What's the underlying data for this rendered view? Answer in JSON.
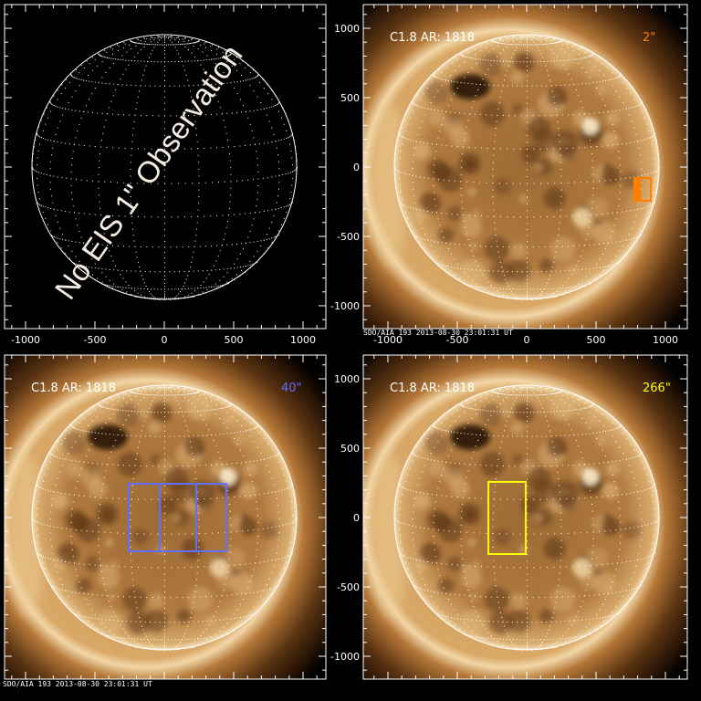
{
  "caption": "SDO/AIA 193  2013-08-30 23:01:31 UT",
  "axes": {
    "units": "arcsec",
    "xlim": [
      -1150,
      1150
    ],
    "ylim": [
      -1170,
      1170
    ],
    "major_ticks": [
      -1000,
      -500,
      0,
      500,
      1000
    ],
    "tick_labels": [
      "-1000",
      "-500",
      "0",
      "500",
      "1000"
    ],
    "minor_step": 100
  },
  "panels": [
    {
      "id": "no-observation",
      "overlay_text": "No EIS 1\" Observation",
      "has_image": false,
      "annotation": "",
      "scale_label": "",
      "color": "#ffffff",
      "boxes": []
    },
    {
      "id": "eis-2",
      "has_image": true,
      "annotation": "C1.8 AR: 1818",
      "scale_label": "2\"",
      "color": "#ff7f00",
      "boxes": [
        {
          "x": [
            776,
            895
          ],
          "y": [
            -243,
            -79
          ],
          "filled_part": true
        }
      ]
    },
    {
      "id": "eis-40",
      "has_image": true,
      "annotation": "C1.8 AR: 1818",
      "scale_label": "40\"",
      "color": "#6070ff",
      "boxes": [
        {
          "x": [
            -257,
            447
          ],
          "y": [
            -243,
            243
          ],
          "dividers": [
            -33,
            230
          ]
        }
      ]
    },
    {
      "id": "eis-266",
      "has_image": true,
      "annotation": "C1.8 AR: 1818",
      "scale_label": "266\"",
      "color": "#ffff00",
      "boxes": [
        {
          "x": [
            -276,
            -7
          ],
          "y": [
            -263,
            257
          ]
        }
      ]
    }
  ]
}
